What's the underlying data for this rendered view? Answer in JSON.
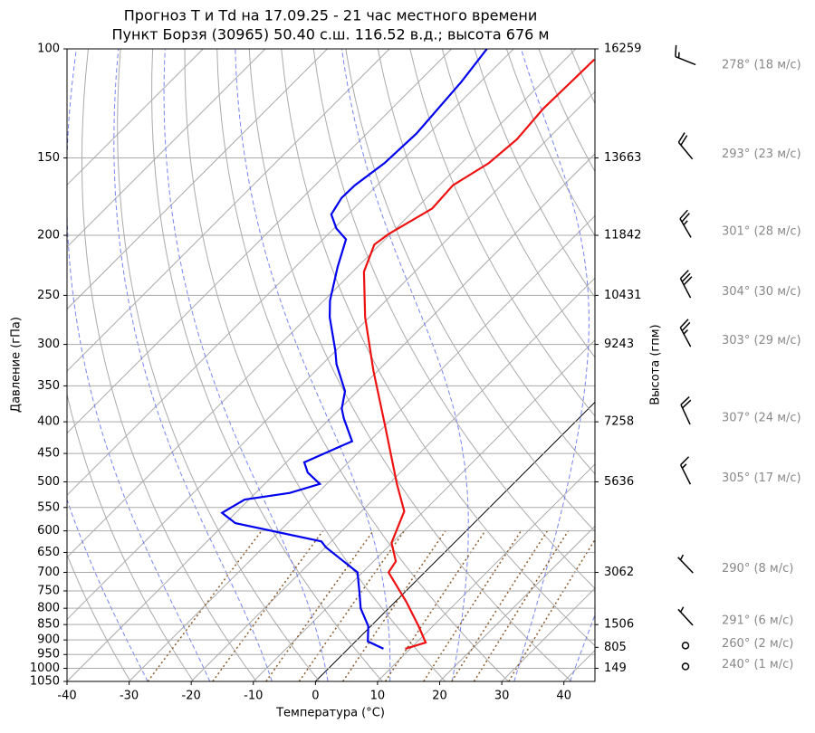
{
  "chart_data": {
    "type": "skewt",
    "title": "Прогноз T и Td на 17.09.25 - 21 час местного времени",
    "subtitle": "Пункт Борзя (30965) 50.40 с.ш. 116.52 в.д.; высота 676 м",
    "x_label": "Температура (°C)",
    "y_label": "Давление (гПа)",
    "y2_label": "Высота (гпм)",
    "xlim": [
      -40,
      45
    ],
    "xticks": [
      -40,
      -30,
      -20,
      -10,
      0,
      10,
      20,
      30,
      40
    ],
    "ylim": [
      1050,
      100
    ],
    "log_y": true,
    "skew_angle": 45,
    "grid": true,
    "yticks": [
      100,
      150,
      200,
      250,
      300,
      350,
      400,
      450,
      500,
      550,
      600,
      650,
      700,
      750,
      800,
      850,
      900,
      950,
      1000,
      1050
    ],
    "height_axis": {
      "pressures": [
        100,
        150,
        200,
        250,
        300,
        400,
        500,
        700,
        850,
        925,
        1000
      ],
      "heights": [
        16259,
        13663,
        11842,
        10431,
        9243,
        7258,
        5636,
        3062,
        1506,
        805,
        149
      ]
    },
    "series": [
      {
        "color": "#ee1111",
        "pressure": [
          930,
          909,
          855,
          781,
          700,
          672,
          627,
          558,
          504,
          405,
          331,
          271,
          229,
          207,
          199,
          181,
          166,
          153,
          140,
          125,
          104
        ],
        "values": [
          9.2,
          11.5,
          7.7,
          1.8,
          -5.8,
          -6.4,
          -10.1,
          -13.1,
          -18.7,
          -30.1,
          -40.7,
          -50.7,
          -58.2,
          -60.9,
          -60.3,
          -57.4,
          -57.8,
          -55.6,
          -54.9,
          -55.6,
          -55.3
        ]
      },
      {
        "color": "#0000ee",
        "pressure": [
          930,
          905,
          855,
          800,
          755,
          700,
          638,
          624,
          583,
          561,
          534,
          521,
          504,
          483,
          465,
          430,
          395,
          381,
          357,
          323,
          307,
          271,
          255,
          225,
          203,
          195,
          185,
          174,
          166,
          153,
          137,
          113,
          100
        ],
        "values": [
          5.7,
          2.0,
          -0.4,
          -4.5,
          -7.2,
          -10.8,
          -19.9,
          -21.6,
          -38.4,
          -42.2,
          -40.7,
          -34.5,
          -31.1,
          -34.9,
          -37.1,
          -32.8,
          -37.8,
          -39.7,
          -42.0,
          -47.7,
          -50.1,
          -56.4,
          -59.0,
          -63.2,
          -66.3,
          -69.6,
          -72.7,
          -73.7,
          -73.6,
          -72.4,
          -72.0,
          -73.1,
          -74.3
        ]
      }
    ],
    "winds": {
      "pressures": [
        100,
        150,
        200,
        250,
        300,
        400,
        500,
        700,
        850,
        925,
        1000
      ],
      "directions": [
        278,
        293,
        301,
        304,
        303,
        307,
        305,
        290,
        291,
        260,
        240
      ],
      "speeds": [
        18,
        23,
        28,
        30,
        29,
        24,
        17,
        8,
        6,
        2,
        1
      ],
      "labels": [
        "278° (18 м/с)",
        "293° (23 м/с)",
        "301° (28 м/с)",
        "304° (30 м/с)",
        "303° (29 м/с)",
        "307° (24 м/с)",
        "305° (17 м/с)",
        "290° (8 м/с)",
        "291° (6 м/с)",
        "260° (2 м/с)",
        "240° (1 м/с)"
      ]
    }
  }
}
